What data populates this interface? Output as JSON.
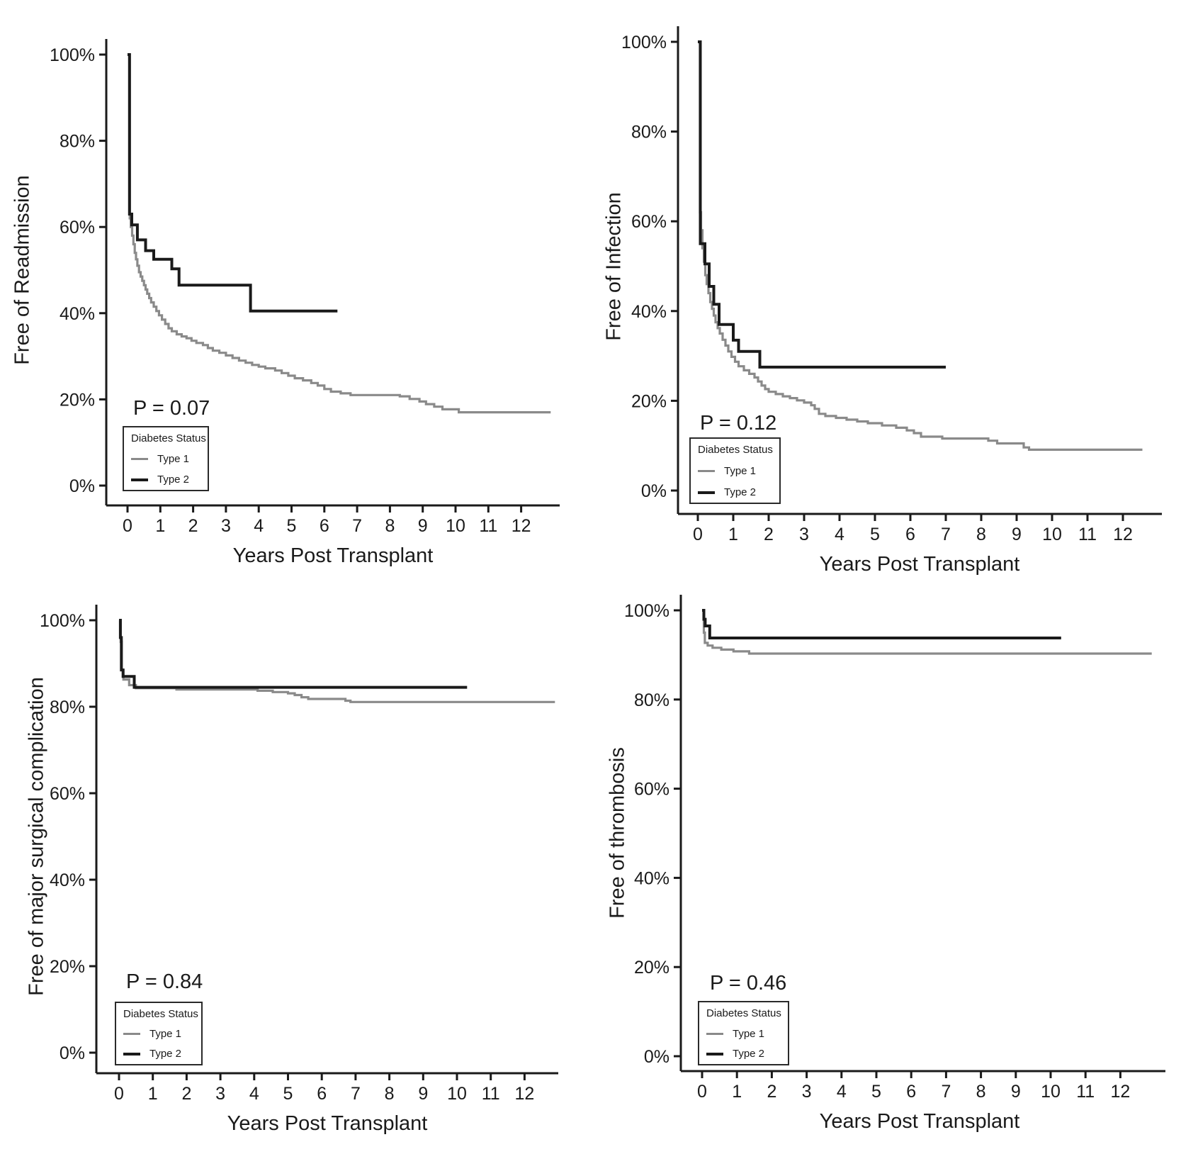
{
  "figure_title": "",
  "accent_colors": {
    "type1_gray": "#8a8a8a",
    "type2_black": "#1a1a1a"
  },
  "chart_data": [
    {
      "type": "line",
      "subtype": "kaplan-meier-step",
      "ylabel": "Free of Readmission",
      "xlabel": "Years Post Transplant",
      "p_label": "P = 0.07",
      "legend_title": "Diabetes Status",
      "legend_position": "lower-left",
      "grid": false,
      "x_ticks": [
        0,
        1,
        2,
        3,
        4,
        5,
        6,
        7,
        8,
        9,
        10,
        11,
        12
      ],
      "y_tick_labels": [
        "0%",
        "20%",
        "40%",
        "60%",
        "80%",
        "100%"
      ],
      "xlim": [
        0,
        12.9
      ],
      "ylim": [
        0,
        100
      ],
      "series": [
        {
          "name": "Type 1",
          "color": "#8a8a8a",
          "stroke_width": 3.2,
          "end_x": 12.9,
          "points": [
            [
              0,
              100
            ],
            [
              0.07,
              62
            ],
            [
              0.1,
              60
            ],
            [
              0.14,
              58
            ],
            [
              0.18,
              56
            ],
            [
              0.22,
              54
            ],
            [
              0.26,
              52.5
            ],
            [
              0.3,
              51
            ],
            [
              0.35,
              49.5
            ],
            [
              0.4,
              48.5
            ],
            [
              0.45,
              47.5
            ],
            [
              0.5,
              46.5
            ],
            [
              0.55,
              45.5
            ],
            [
              0.6,
              44.5
            ],
            [
              0.66,
              43.5
            ],
            [
              0.72,
              42.5
            ],
            [
              0.8,
              41.5
            ],
            [
              0.88,
              40.5
            ],
            [
              0.96,
              39.5
            ],
            [
              1.05,
              38.5
            ],
            [
              1.15,
              37.5
            ],
            [
              1.25,
              36.5
            ],
            [
              1.35,
              35.8
            ],
            [
              1.5,
              35.1
            ],
            [
              1.65,
              34.6
            ],
            [
              1.8,
              34.2
            ],
            [
              1.95,
              33.6
            ],
            [
              2.1,
              33.1
            ],
            [
              2.3,
              32.6
            ],
            [
              2.45,
              31.9
            ],
            [
              2.6,
              31.3
            ],
            [
              2.8,
              30.8
            ],
            [
              3,
              30.2
            ],
            [
              3.2,
              29.6
            ],
            [
              3.4,
              29
            ],
            [
              3.6,
              28.5
            ],
            [
              3.8,
              28
            ],
            [
              4,
              27.6
            ],
            [
              4.2,
              27.2
            ],
            [
              4.5,
              26.7
            ],
            [
              4.7,
              26.1
            ],
            [
              4.9,
              25.5
            ],
            [
              5.1,
              24.9
            ],
            [
              5.35,
              24.4
            ],
            [
              5.6,
              23.8
            ],
            [
              5.8,
              23.2
            ],
            [
              6,
              22.4
            ],
            [
              6.2,
              21.8
            ],
            [
              6.5,
              21.4
            ],
            [
              6.8,
              21
            ],
            [
              8.3,
              20.7
            ],
            [
              8.6,
              20.1
            ],
            [
              8.9,
              19.5
            ],
            [
              9.1,
              18.9
            ],
            [
              9.35,
              18.3
            ],
            [
              9.6,
              17.7
            ],
            [
              10.1,
              17
            ]
          ]
        },
        {
          "name": "Type 2",
          "color": "#1a1a1a",
          "stroke_width": 4,
          "end_x": 6.4,
          "points": [
            [
              0,
              100
            ],
            [
              0.06,
              63
            ],
            [
              0.13,
              60.5
            ],
            [
              0.3,
              57
            ],
            [
              0.55,
              54.5
            ],
            [
              0.8,
              52.5
            ],
            [
              1.35,
              50.3
            ],
            [
              1.57,
              46.5
            ],
            [
              3.75,
              40.5
            ]
          ]
        }
      ]
    },
    {
      "type": "line",
      "subtype": "kaplan-meier-step",
      "ylabel": "Free of Infection",
      "xlabel": "Years Post Transplant",
      "p_label": "P = 0.12",
      "legend_title": "Diabetes Status",
      "legend_position": "lower-left",
      "grid": false,
      "x_ticks": [
        0,
        1,
        2,
        3,
        4,
        5,
        6,
        7,
        8,
        9,
        10,
        11,
        12
      ],
      "y_tick_labels": [
        "0%",
        "20%",
        "40%",
        "60%",
        "80%",
        "100%"
      ],
      "xlim": [
        0,
        12.6
      ],
      "ylim": [
        0,
        100
      ],
      "series": [
        {
          "name": "Type 1",
          "color": "#8a8a8a",
          "stroke_width": 3.2,
          "end_x": 12.55,
          "points": [
            [
              0,
              100
            ],
            [
              0.06,
              62
            ],
            [
              0.09,
              58
            ],
            [
              0.13,
              54
            ],
            [
              0.17,
              51
            ],
            [
              0.21,
              48
            ],
            [
              0.25,
              46
            ],
            [
              0.3,
              44
            ],
            [
              0.35,
              42
            ],
            [
              0.4,
              40.5
            ],
            [
              0.45,
              39
            ],
            [
              0.5,
              37.5
            ],
            [
              0.56,
              36.2
            ],
            [
              0.62,
              35
            ],
            [
              0.7,
              33.6
            ],
            [
              0.78,
              32.3
            ],
            [
              0.86,
              31
            ],
            [
              0.95,
              29.8
            ],
            [
              1.05,
              28.7
            ],
            [
              1.15,
              27.7
            ],
            [
              1.3,
              26.8
            ],
            [
              1.45,
              26
            ],
            [
              1.6,
              25.2
            ],
            [
              1.7,
              24.3
            ],
            [
              1.8,
              23.4
            ],
            [
              1.9,
              22.6
            ],
            [
              2,
              22
            ],
            [
              2.2,
              21.5
            ],
            [
              2.4,
              21
            ],
            [
              2.6,
              20.6
            ],
            [
              2.8,
              20.1
            ],
            [
              3,
              19.6
            ],
            [
              3.2,
              19
            ],
            [
              3.3,
              18.2
            ],
            [
              3.42,
              17.1
            ],
            [
              3.6,
              16.6
            ],
            [
              3.9,
              16.2
            ],
            [
              4.2,
              15.8
            ],
            [
              4.5,
              15.4
            ],
            [
              4.8,
              15
            ],
            [
              5.2,
              14.5
            ],
            [
              5.6,
              14
            ],
            [
              5.9,
              13.4
            ],
            [
              6.1,
              12.8
            ],
            [
              6.3,
              12
            ],
            [
              6.9,
              11.6
            ],
            [
              8.2,
              11.1
            ],
            [
              8.45,
              10.5
            ],
            [
              9.2,
              9.6
            ],
            [
              9.35,
              9.1
            ]
          ]
        },
        {
          "name": "Type 2",
          "color": "#1a1a1a",
          "stroke_width": 4,
          "end_x": 7.0,
          "points": [
            [
              0,
              100
            ],
            [
              0.07,
              55
            ],
            [
              0.2,
              50.5
            ],
            [
              0.32,
              45.5
            ],
            [
              0.45,
              41.5
            ],
            [
              0.6,
              37
            ],
            [
              1,
              33.5
            ],
            [
              1.15,
              31
            ],
            [
              1.75,
              27.5
            ]
          ]
        }
      ]
    },
    {
      "type": "line",
      "subtype": "kaplan-meier-step",
      "ylabel": "Free of major surgical complication",
      "xlabel": "Years Post Transplant",
      "p_label": "P = 0.84",
      "legend_title": "Diabetes Status",
      "legend_position": "lower-left",
      "grid": false,
      "x_ticks": [
        0,
        1,
        2,
        3,
        4,
        5,
        6,
        7,
        8,
        9,
        10,
        11,
        12
      ],
      "y_tick_labels": [
        "0%",
        "20%",
        "40%",
        "60%",
        "80%",
        "100%"
      ],
      "xlim": [
        0,
        12.9
      ],
      "ylim": [
        0,
        100
      ],
      "series": [
        {
          "name": "Type 1",
          "color": "#8a8a8a",
          "stroke_width": 3.2,
          "end_x": 12.9,
          "points": [
            [
              0,
              100
            ],
            [
              0.05,
              95
            ],
            [
              0.08,
              88.5
            ],
            [
              0.13,
              86.3
            ],
            [
              0.3,
              85
            ],
            [
              0.5,
              84.3
            ],
            [
              1.7,
              84
            ],
            [
              4.1,
              83.7
            ],
            [
              4.55,
              83.4
            ],
            [
              5,
              83.1
            ],
            [
              5.2,
              82.7
            ],
            [
              5.4,
              82.2
            ],
            [
              5.6,
              81.8
            ],
            [
              6.7,
              81.4
            ],
            [
              6.85,
              81.1
            ]
          ]
        },
        {
          "name": "Type 2",
          "color": "#1a1a1a",
          "stroke_width": 4,
          "end_x": 10.3,
          "points": [
            [
              0,
              100
            ],
            [
              0.04,
              96
            ],
            [
              0.07,
              88.5
            ],
            [
              0.12,
              87
            ],
            [
              0.45,
              84.5
            ]
          ]
        }
      ]
    },
    {
      "type": "line",
      "subtype": "kaplan-meier-step",
      "ylabel": "Free of thrombosis",
      "xlabel": "Years Post Transplant",
      "p_label": "P = 0.46",
      "legend_title": "Diabetes Status",
      "legend_position": "lower-left",
      "grid": false,
      "x_ticks": [
        0,
        1,
        2,
        3,
        4,
        5,
        6,
        7,
        8,
        9,
        10,
        11,
        12
      ],
      "y_tick_labels": [
        "0%",
        "20%",
        "40%",
        "60%",
        "80%",
        "100%"
      ],
      "xlim": [
        0,
        12.9
      ],
      "ylim": [
        0,
        100
      ],
      "series": [
        {
          "name": "Type 1",
          "color": "#8a8a8a",
          "stroke_width": 3.2,
          "end_x": 12.9,
          "points": [
            [
              0,
              100
            ],
            [
              0.05,
              95
            ],
            [
              0.08,
              92.7
            ],
            [
              0.16,
              92.1
            ],
            [
              0.3,
              91.6
            ],
            [
              0.55,
              91.2
            ],
            [
              0.9,
              90.8
            ],
            [
              1.35,
              90.3
            ]
          ]
        },
        {
          "name": "Type 2",
          "color": "#1a1a1a",
          "stroke_width": 4,
          "end_x": 10.3,
          "points": [
            [
              0,
              100
            ],
            [
              0.05,
              98
            ],
            [
              0.09,
              96.5
            ],
            [
              0.22,
              93.8
            ]
          ]
        }
      ]
    }
  ]
}
